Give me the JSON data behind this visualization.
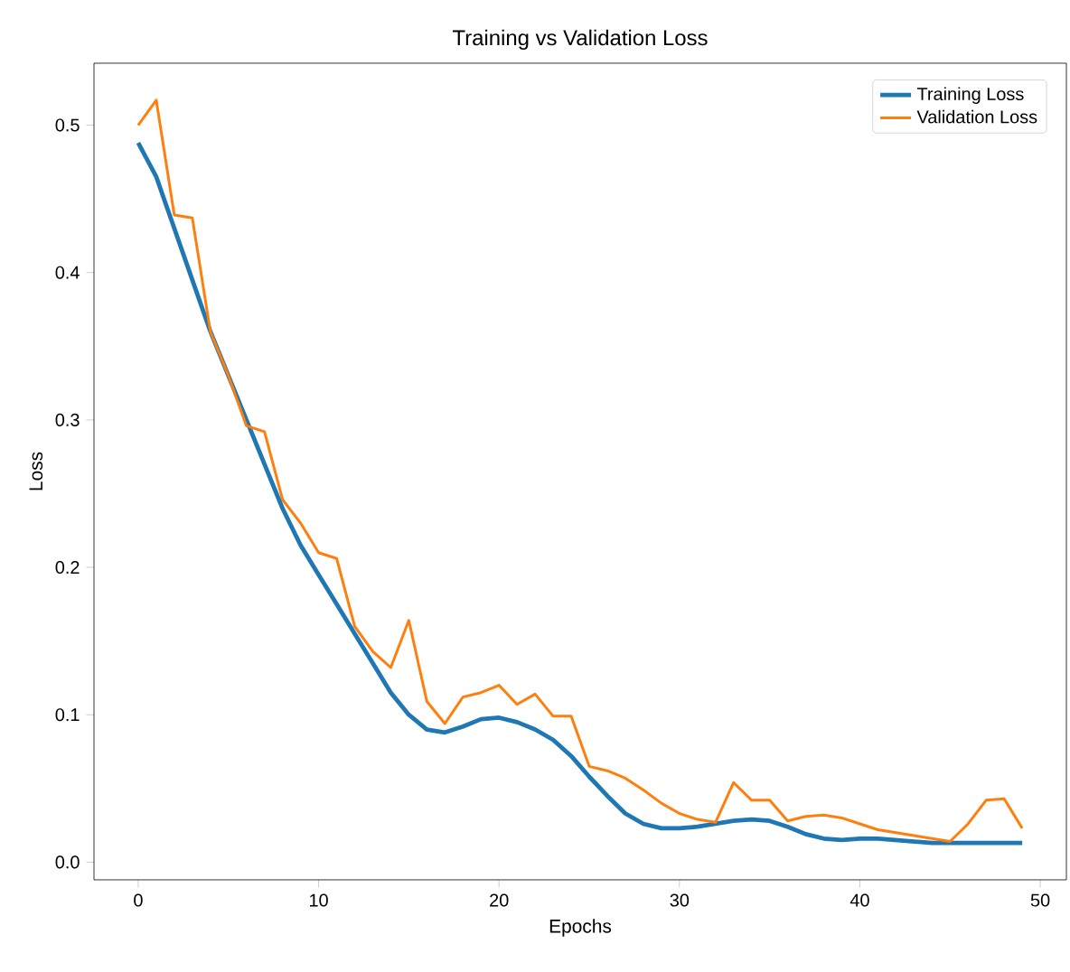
{
  "chart_data": {
    "type": "line",
    "title": "Training vs Validation Loss",
    "xlabel": "Epochs",
    "ylabel": "Loss",
    "x": [
      0,
      1,
      2,
      3,
      4,
      5,
      6,
      7,
      8,
      9,
      10,
      11,
      12,
      13,
      14,
      15,
      16,
      17,
      18,
      19,
      20,
      21,
      22,
      23,
      24,
      25,
      26,
      27,
      28,
      29,
      30,
      31,
      32,
      33,
      34,
      35,
      36,
      37,
      38,
      39,
      40,
      41,
      42,
      43,
      44,
      45,
      46,
      47,
      48,
      49
    ],
    "series": [
      {
        "name": "Training Loss",
        "color": "#1f77b4",
        "values": [
          0.488,
          0.465,
          0.43,
          0.395,
          0.36,
          0.33,
          0.3,
          0.27,
          0.24,
          0.215,
          0.195,
          0.175,
          0.155,
          0.135,
          0.115,
          0.1,
          0.09,
          0.088,
          0.092,
          0.097,
          0.098,
          0.095,
          0.09,
          0.083,
          0.072,
          0.058,
          0.045,
          0.033,
          0.026,
          0.023,
          0.023,
          0.024,
          0.026,
          0.028,
          0.029,
          0.028,
          0.024,
          0.019,
          0.016,
          0.015,
          0.016,
          0.016,
          0.015,
          0.014,
          0.013,
          0.013,
          0.013,
          0.013,
          0.013,
          0.013
        ]
      },
      {
        "name": "Validation Loss",
        "color": "#ff7f0e",
        "values": [
          0.5,
          0.517,
          0.439,
          0.437,
          0.36,
          0.33,
          0.296,
          0.292,
          0.246,
          0.23,
          0.21,
          0.206,
          0.16,
          0.143,
          0.132,
          0.164,
          0.109,
          0.094,
          0.112,
          0.115,
          0.12,
          0.107,
          0.114,
          0.099,
          0.099,
          0.065,
          0.062,
          0.057,
          0.049,
          0.04,
          0.033,
          0.029,
          0.027,
          0.054,
          0.042,
          0.042,
          0.028,
          0.031,
          0.032,
          0.03,
          0.026,
          0.022,
          0.02,
          0.018,
          0.016,
          0.014,
          0.026,
          0.042,
          0.043,
          0.023
        ]
      }
    ],
    "xlim": [
      -2.45,
      51.45
    ],
    "ylim": [
      -0.012,
      0.542
    ],
    "xticks": [
      0,
      10,
      20,
      30,
      40,
      50
    ],
    "yticks": [
      {
        "value": 0,
        "label": "0.0"
      },
      {
        "value": 0.1,
        "label": "0.1"
      },
      {
        "value": 0.2,
        "label": "0.2"
      },
      {
        "value": 0.3,
        "label": "0.3"
      },
      {
        "value": 0.4,
        "label": "0.4"
      },
      {
        "value": 0.5,
        "label": "0.5"
      }
    ],
    "legend": "top right",
    "grid": false,
    "marker": "none",
    "line_style": "solid"
  }
}
